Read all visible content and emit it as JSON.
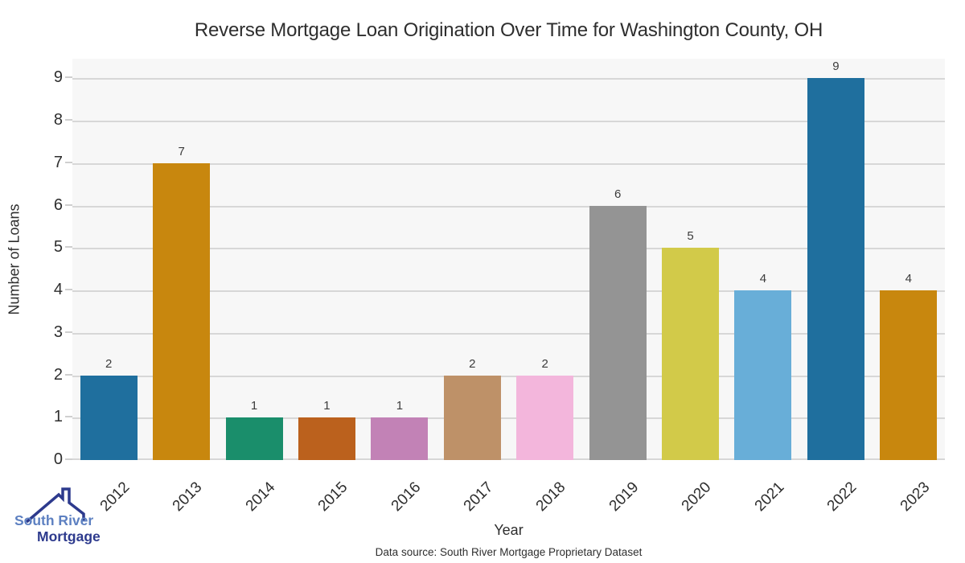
{
  "title": "Reverse Mortgage Loan Origination Over Time for Washington County, OH",
  "chart_data": {
    "type": "bar",
    "categories": [
      "2012",
      "2013",
      "2014",
      "2015",
      "2016",
      "2017",
      "2018",
      "2019",
      "2020",
      "2021",
      "2022",
      "2023"
    ],
    "values": [
      2,
      7,
      1,
      1,
      1,
      2,
      2,
      6,
      5,
      4,
      9,
      4
    ],
    "bar_colors": [
      "#1f6f9e",
      "#c8870e",
      "#1a8e6b",
      "#bb611d",
      "#c282b6",
      "#be9168",
      "#f3b6dc",
      "#949494",
      "#d2ca49",
      "#68aed8",
      "#1f6f9e",
      "#c8870e"
    ],
    "title": "Reverse Mortgage Loan Origination Over Time for Washington County, OH",
    "xlabel": "Year",
    "ylabel": "Number of Loans",
    "ylim": [
      0,
      9.46
    ],
    "yticks": [
      0,
      1,
      2,
      3,
      4,
      5,
      6,
      7,
      8,
      9
    ],
    "grid": "horizontal",
    "legend": "none",
    "plot_bg_color": "#f7f7f7",
    "grid_color": "#d7d7d7"
  },
  "footer": {
    "data_source": "Data source: South River Mortgage Proprietary Dataset"
  },
  "logo": {
    "line1": "South River",
    "line2": "Mortgage",
    "color_light": "#5d80c1",
    "color_dark": "#2d3a8d"
  }
}
